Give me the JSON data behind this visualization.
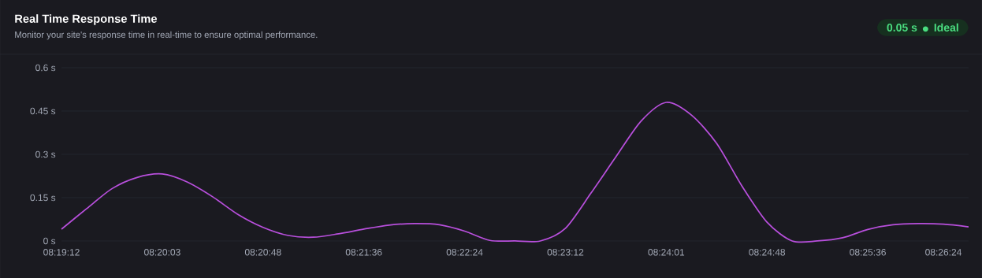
{
  "chart_data": {
    "type": "line",
    "title": "Real Time Response Time",
    "subtitle": "Monitor your site's response time in real-time to ensure optimal performance.",
    "annotations": [
      "0.05 s",
      "Ideal"
    ],
    "categories": [
      "08:19:12",
      null,
      null,
      null,
      "08:20:03",
      null,
      null,
      null,
      "08:20:48",
      null,
      null,
      null,
      "08:21:36",
      null,
      null,
      null,
      "08:22:24",
      null,
      null,
      null,
      "08:23:12",
      null,
      null,
      null,
      "08:24:01",
      null,
      null,
      null,
      "08:24:48",
      null,
      null,
      null,
      "08:25:36",
      null,
      null,
      "08:26:24",
      null
    ],
    "series": [
      {
        "color": "#b84fdc",
        "values": [
          0.041,
          0.112,
          0.181,
          0.22,
          0.232,
          0.204,
          0.153,
          0.092,
          0.047,
          0.019,
          0.013,
          0.025,
          0.041,
          0.055,
          0.06,
          0.056,
          0.034,
          0.002,
          0,
          0,
          0.044,
          0.164,
          0.291,
          0.415,
          0.48,
          0.436,
          0.338,
          0.191,
          0.065,
          0,
          0,
          0.011,
          0.04,
          0.056,
          0.06,
          0.058,
          0.049
        ]
      }
    ],
    "ylim": [
      0,
      0.6
    ],
    "yticks": [
      {
        "value": 0,
        "label": "0 s"
      },
      {
        "value": 0.15,
        "label": "0.15 s"
      },
      {
        "value": 0.3,
        "label": "0.3 s"
      },
      {
        "value": 0.45,
        "label": "0.45 s"
      },
      {
        "value": 0.6,
        "label": "0.6 s"
      }
    ],
    "grid": "y"
  }
}
